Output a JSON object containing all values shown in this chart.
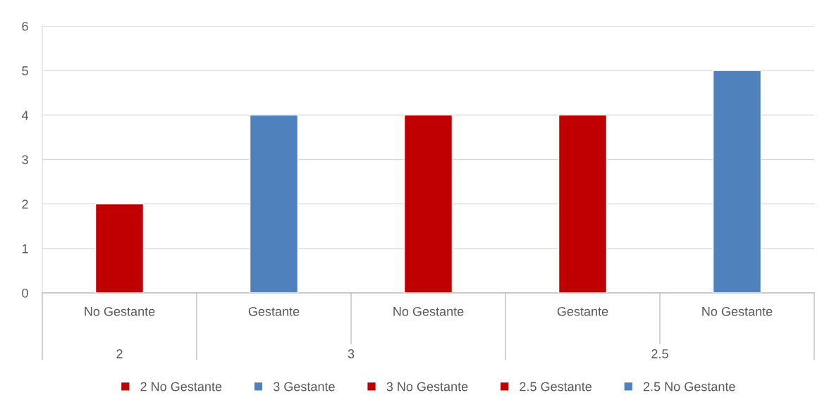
{
  "chart_data": {
    "type": "bar",
    "categories": [
      "No Gestante",
      "Gestante",
      "No Gestante",
      "Gestante",
      "No Gestante"
    ],
    "annotations": [
      "2",
      "3",
      "2.5"
    ],
    "series": [
      {
        "name": "2 No Gestante",
        "color": "#c00000",
        "values": [
          2,
          null,
          null,
          null,
          null
        ]
      },
      {
        "name": "3 Gestante",
        "color": "#4f81bd",
        "values": [
          null,
          4,
          null,
          null,
          null
        ]
      },
      {
        "name": "3 No Gestante",
        "color": "#c00000",
        "values": [
          null,
          null,
          4,
          null,
          null
        ]
      },
      {
        "name": "2.5 Gestante",
        "color": "#c00000",
        "values": [
          null,
          null,
          null,
          4,
          null
        ]
      },
      {
        "name": "2.5 No Gestante",
        "color": "#4f81bd",
        "values": [
          null,
          null,
          null,
          null,
          5
        ]
      }
    ],
    "ylim": [
      0,
      6
    ],
    "yticks": [
      0,
      1,
      2,
      3,
      4,
      5,
      6
    ],
    "grid": "y",
    "legend": "bottom"
  }
}
